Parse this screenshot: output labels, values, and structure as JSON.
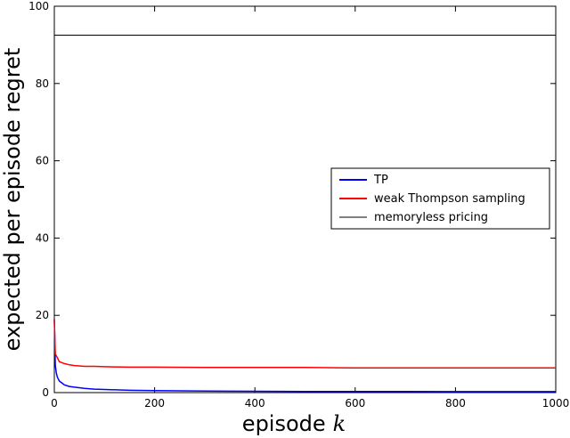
{
  "chart_data": {
    "type": "line",
    "xlabel": "episode",
    "xlabel_var": "k",
    "ylabel": "expected per episode regret",
    "xlim": [
      0,
      1000
    ],
    "ylim": [
      0,
      100
    ],
    "xticks": [
      "0",
      "200",
      "400",
      "600",
      "800",
      "1000"
    ],
    "yticks": [
      "0",
      "20",
      "40",
      "60",
      "80",
      "100"
    ],
    "legend_position": "center-right",
    "series": [
      {
        "name": "TP",
        "color": "#0000ff",
        "x": [
          0,
          2,
          4,
          6,
          8,
          10,
          15,
          20,
          30,
          40,
          60,
          80,
          100,
          150,
          200,
          300,
          400,
          500,
          600,
          700,
          800,
          900,
          1000
        ],
        "values": [
          19,
          7,
          5,
          4,
          3.5,
          3,
          2.5,
          2,
          1.6,
          1.4,
          1.1,
          0.9,
          0.8,
          0.6,
          0.5,
          0.4,
          0.35,
          0.3,
          0.3,
          0.3,
          0.25,
          0.25,
          0.25
        ]
      },
      {
        "name": "weak Thompson sampling",
        "color": "#ff0000",
        "x": [
          0,
          2,
          4,
          6,
          8,
          10,
          20,
          30,
          40,
          60,
          80,
          100,
          150,
          200,
          300,
          400,
          500,
          600,
          700,
          800,
          900,
          1000
        ],
        "values": [
          19,
          10,
          9.5,
          9,
          8.5,
          8,
          7.5,
          7.2,
          7,
          6.8,
          6.8,
          6.7,
          6.6,
          6.6,
          6.5,
          6.5,
          6.5,
          6.4,
          6.4,
          6.4,
          6.4,
          6.4
        ]
      },
      {
        "name": "memoryless pricing",
        "color": "#000000",
        "x": [
          0,
          1000
        ],
        "values": [
          92.5,
          92.5
        ]
      }
    ]
  }
}
